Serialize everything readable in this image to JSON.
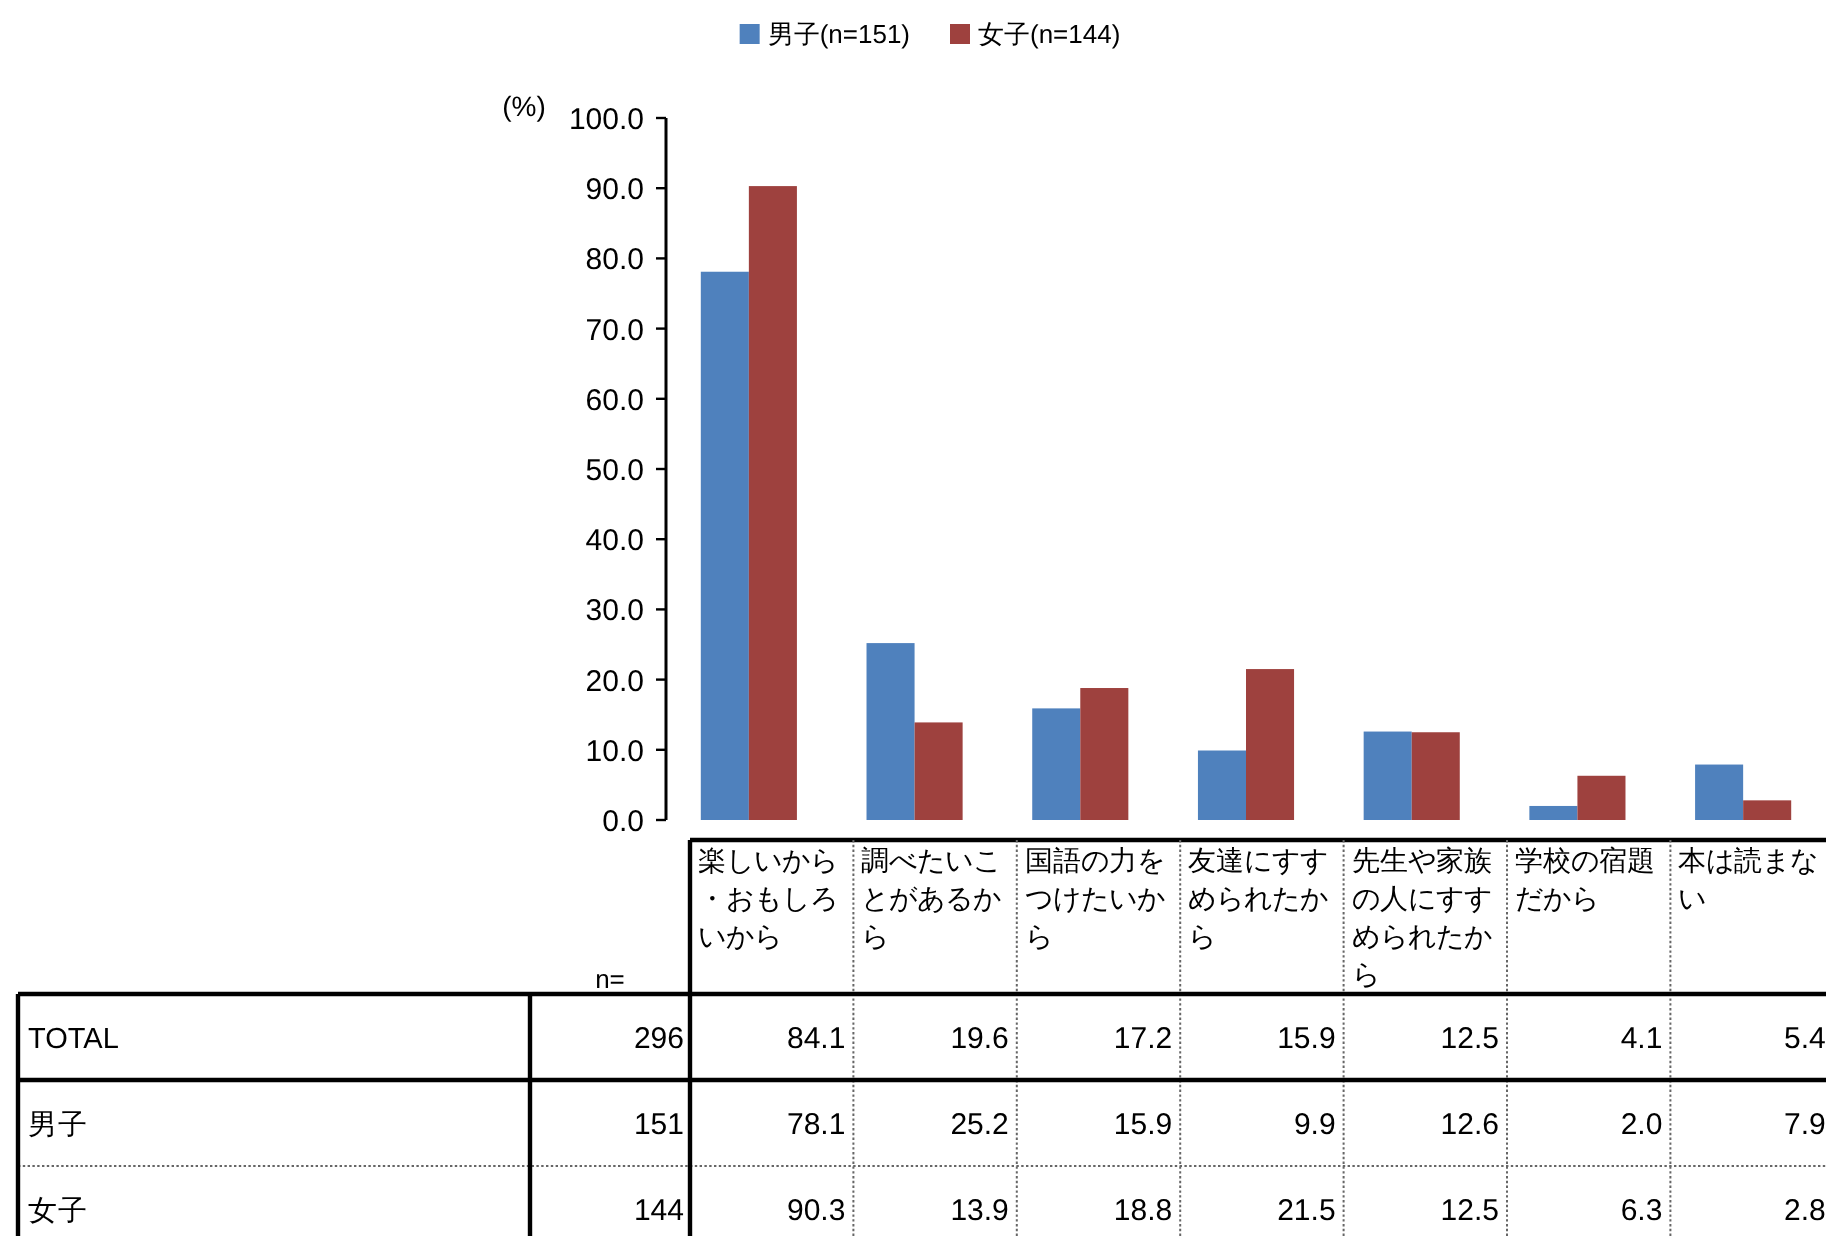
{
  "chart_data": {
    "type": "bar",
    "categories": [
      "楽しいから・おもしろいから",
      "調べたいことがあるから",
      "国語の力をつけたいから",
      "友達にすすめられたから",
      "先生や家族の人にすすめられたから",
      "学校の宿題だから",
      "本は読まない"
    ],
    "series": [
      {
        "name": "男子(n=151)",
        "color": "#4f81bd",
        "values": [
          78.1,
          25.2,
          15.9,
          9.9,
          12.6,
          2.0,
          7.9
        ],
        "value_labels": [
          "78.1",
          "25.2",
          "15.9",
          "9.9",
          "12.6",
          "2.0",
          "7.9"
        ]
      },
      {
        "name": "女子(n=144)",
        "color": "#9e413e",
        "values": [
          90.3,
          13.9,
          18.8,
          21.5,
          12.5,
          6.3,
          2.8
        ],
        "value_labels": [
          "90.3",
          "13.9",
          "18.8",
          "21.5",
          "12.5",
          "6.3",
          "2.8"
        ]
      }
    ],
    "ylabel": "(%)",
    "ylim": [
      0,
      100
    ],
    "yticks": [
      {
        "value": 0,
        "label": "0.0"
      },
      {
        "value": 10,
        "label": "10.0"
      },
      {
        "value": 20,
        "label": "20.0"
      },
      {
        "value": 30,
        "label": "30.0"
      },
      {
        "value": 40,
        "label": "40.0"
      },
      {
        "value": 50,
        "label": "50.0"
      },
      {
        "value": 60,
        "label": "60.0"
      },
      {
        "value": 70,
        "label": "70.0"
      },
      {
        "value": 80,
        "label": "80.0"
      },
      {
        "value": 90,
        "label": "90.0"
      },
      {
        "value": 100,
        "label": "100.0"
      }
    ],
    "legend": "top",
    "annotations": [
      "n=",
      "TOTAL",
      "296",
      "84.1",
      "19.6",
      "17.2",
      "15.9",
      "12.5",
      "4.1",
      "5.4",
      "男子",
      "151",
      "女子",
      "144"
    ]
  }
}
